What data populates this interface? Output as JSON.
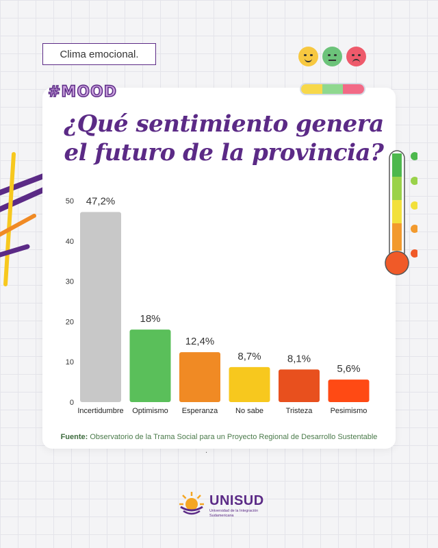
{
  "header": {
    "tag": "Clima emocional.",
    "hashtag": "#MOOD",
    "title_line1": "¿Qué sentimiento genera",
    "title_line2": "el futuro de la provincia?"
  },
  "colors": {
    "brand": "#5b2a86",
    "face_happy": "#f7c840",
    "face_neutral": "#6cc37a",
    "face_sad": "#ee5a6b"
  },
  "icons": [
    "smiling-face-icon",
    "neutral-face-icon",
    "sad-face-icon",
    "thermometer-icon"
  ],
  "chart_data": {
    "type": "bar",
    "categories": [
      "Incertidumbre",
      "Optimismo",
      "Esperanza",
      "No sabe",
      "Tristeza",
      "Pesimismo"
    ],
    "values": [
      47.2,
      18,
      12.4,
      8.7,
      8.1,
      5.6
    ],
    "value_labels": [
      "47,2%",
      "18%",
      "12,4%",
      "8,7%",
      "8,1%",
      "5,6%"
    ],
    "colors": [
      "#c8c8c8",
      "#5abf5a",
      "#f08a24",
      "#f7c81e",
      "#e8501e",
      "#ff4a14"
    ],
    "ylim": [
      0,
      50
    ],
    "yticks": [
      0,
      10,
      20,
      30,
      40,
      50
    ],
    "grid": false,
    "legend": "none"
  },
  "footer": {
    "source_label": "Fuente:",
    "source_text": "Observatorio de la Trama Social para un Proyecto Regional de Desarrollo Sustentable",
    "dot": ".",
    "logo_name": "UNISUD",
    "logo_sub": "Universidad de la Integración Sudamericana"
  }
}
